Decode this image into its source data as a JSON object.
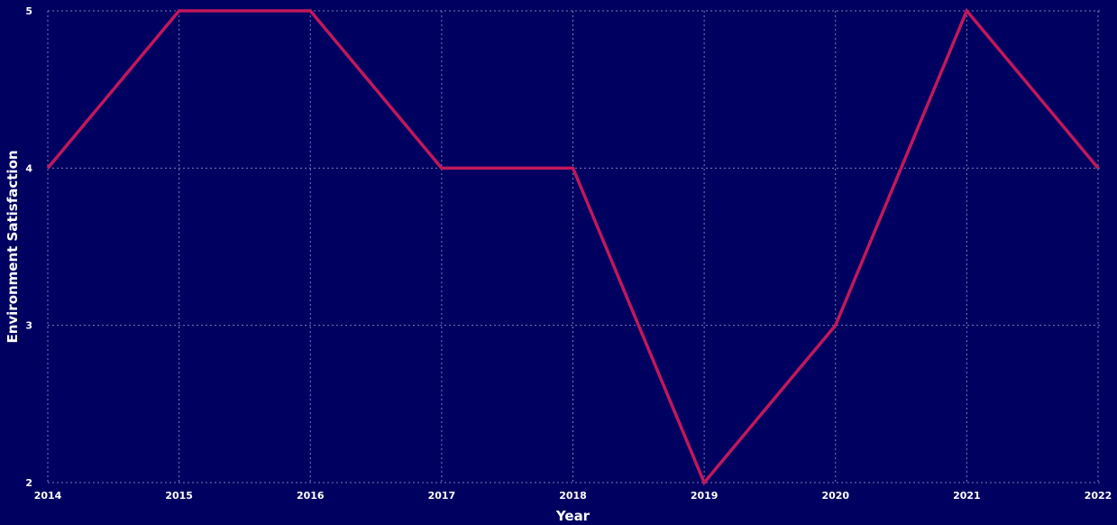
{
  "chart_data": {
    "type": "line",
    "xlabel": "Year",
    "ylabel": "Environment Satisfaction",
    "x": [
      "2014",
      "2015",
      "2016",
      "2017",
      "2018",
      "2019",
      "2020",
      "2021",
      "2022"
    ],
    "series": [
      {
        "values": [
          4,
          5,
          5,
          4,
          4,
          2,
          3,
          5,
          4
        ],
        "color": "#c2185b"
      }
    ],
    "yticks": [
      "2",
      "3",
      "4",
      "5"
    ],
    "ylim": [
      2,
      5
    ],
    "grid": true,
    "legend": "none",
    "background": "#000060"
  }
}
